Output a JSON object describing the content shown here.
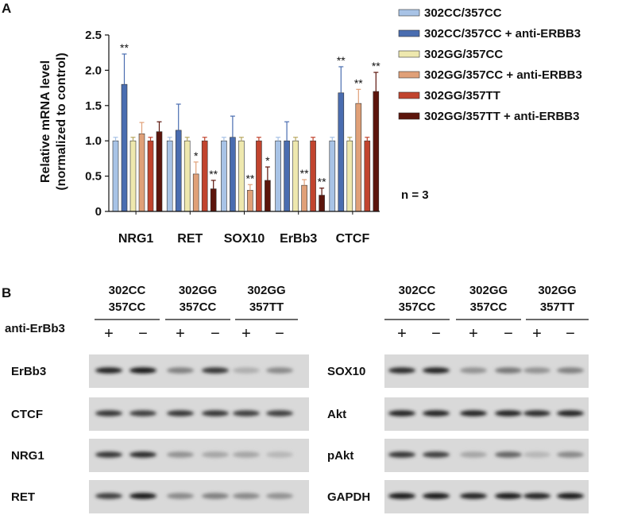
{
  "panel_a_label": "A",
  "panel_b_label": "B",
  "chart_data": {
    "type": "bar",
    "title": "",
    "ylabel_line1": "Relative mRNA level",
    "ylabel_line2": "(normalized to control)",
    "xlabel": "",
    "ylim": [
      0,
      2.5
    ],
    "yticks": [
      "0",
      "0.5",
      "1.0",
      "1.5",
      "2.0",
      "2.5"
    ],
    "categories": [
      "NRG1",
      "RET",
      "SOX10",
      "ErBb3",
      "CTCF"
    ],
    "legend_position": "right",
    "grid": false,
    "series": [
      {
        "name": "302CC/357CC",
        "color": "#a8c3e6",
        "values": [
          1.0,
          1.0,
          1.0,
          1.0,
          1.0
        ],
        "errors": [
          0.05,
          0.05,
          0.05,
          0.05,
          0.05
        ],
        "marks": [
          "",
          "",
          "",
          "",
          ""
        ]
      },
      {
        "name": "302CC/357CC + anti-ERBB3",
        "color": "#4a6db0",
        "values": [
          1.8,
          1.15,
          1.05,
          1.0,
          1.68
        ],
        "errors": [
          0.43,
          0.37,
          0.3,
          0.27,
          0.37
        ],
        "marks": [
          "**",
          "",
          "",
          "",
          "**"
        ]
      },
      {
        "name": "302GG/357CC",
        "color": "#eee8ae",
        "values": [
          1.0,
          1.0,
          1.0,
          1.0,
          1.0
        ],
        "errors": [
          0.05,
          0.05,
          0.05,
          0.05,
          0.05
        ],
        "marks": [
          "",
          "",
          "",
          "",
          ""
        ]
      },
      {
        "name": "302GG/357CC + anti-ERBB3",
        "color": "#e0a078",
        "values": [
          1.1,
          0.53,
          0.3,
          0.37,
          1.53
        ],
        "errors": [
          0.16,
          0.17,
          0.08,
          0.08,
          0.2
        ],
        "marks": [
          "",
          "*",
          "**",
          "**",
          "**"
        ]
      },
      {
        "name": "302GG/357TT",
        "color": "#c1442e",
        "values": [
          1.0,
          1.0,
          1.0,
          1.0,
          1.0
        ],
        "errors": [
          0.05,
          0.05,
          0.05,
          0.05,
          0.05
        ],
        "marks": [
          "",
          "",
          "",
          "",
          ""
        ]
      },
      {
        "name": "302GG/357TT + anti-ERBB3",
        "color": "#5c150c",
        "values": [
          1.13,
          0.32,
          0.44,
          0.23,
          1.7
        ],
        "errors": [
          0.14,
          0.12,
          0.19,
          0.1,
          0.27
        ],
        "marks": [
          "",
          "**",
          "*",
          "**",
          "**"
        ]
      }
    ],
    "n_label": "n = 3"
  },
  "blot": {
    "treatment_label": "anti-ErBb3",
    "groups": [
      {
        "line1": "302CC",
        "line2": "357CC"
      },
      {
        "line1": "302GG",
        "line2": "357CC"
      },
      {
        "line1": "302GG",
        "line2": "357TT"
      }
    ],
    "lane_signs": [
      "+",
      "−",
      "+",
      "−",
      "+",
      "−"
    ],
    "left_panels": [
      {
        "label": "ErBb3",
        "intensity": [
          0.95,
          1.0,
          0.45,
          0.85,
          0.2,
          0.4
        ]
      },
      {
        "label": "CTCF",
        "intensity": [
          0.85,
          0.8,
          0.85,
          0.85,
          0.8,
          0.8
        ]
      },
      {
        "label": "NRG1",
        "intensity": [
          0.85,
          0.9,
          0.35,
          0.25,
          0.25,
          0.15
        ]
      },
      {
        "label": "RET",
        "intensity": [
          0.8,
          1.0,
          0.4,
          0.45,
          0.4,
          0.35
        ]
      }
    ],
    "right_panels": [
      {
        "label": "SOX10",
        "intensity": [
          0.9,
          0.95,
          0.35,
          0.5,
          0.35,
          0.45
        ]
      },
      {
        "label": "Akt",
        "intensity": [
          0.95,
          0.95,
          0.95,
          0.95,
          0.9,
          0.95
        ]
      },
      {
        "label": "pAkt",
        "intensity": [
          0.85,
          0.8,
          0.25,
          0.6,
          0.15,
          0.4
        ]
      },
      {
        "label": "GAPDH",
        "intensity": [
          1.0,
          1.0,
          0.95,
          1.0,
          0.95,
          1.0
        ]
      }
    ]
  }
}
